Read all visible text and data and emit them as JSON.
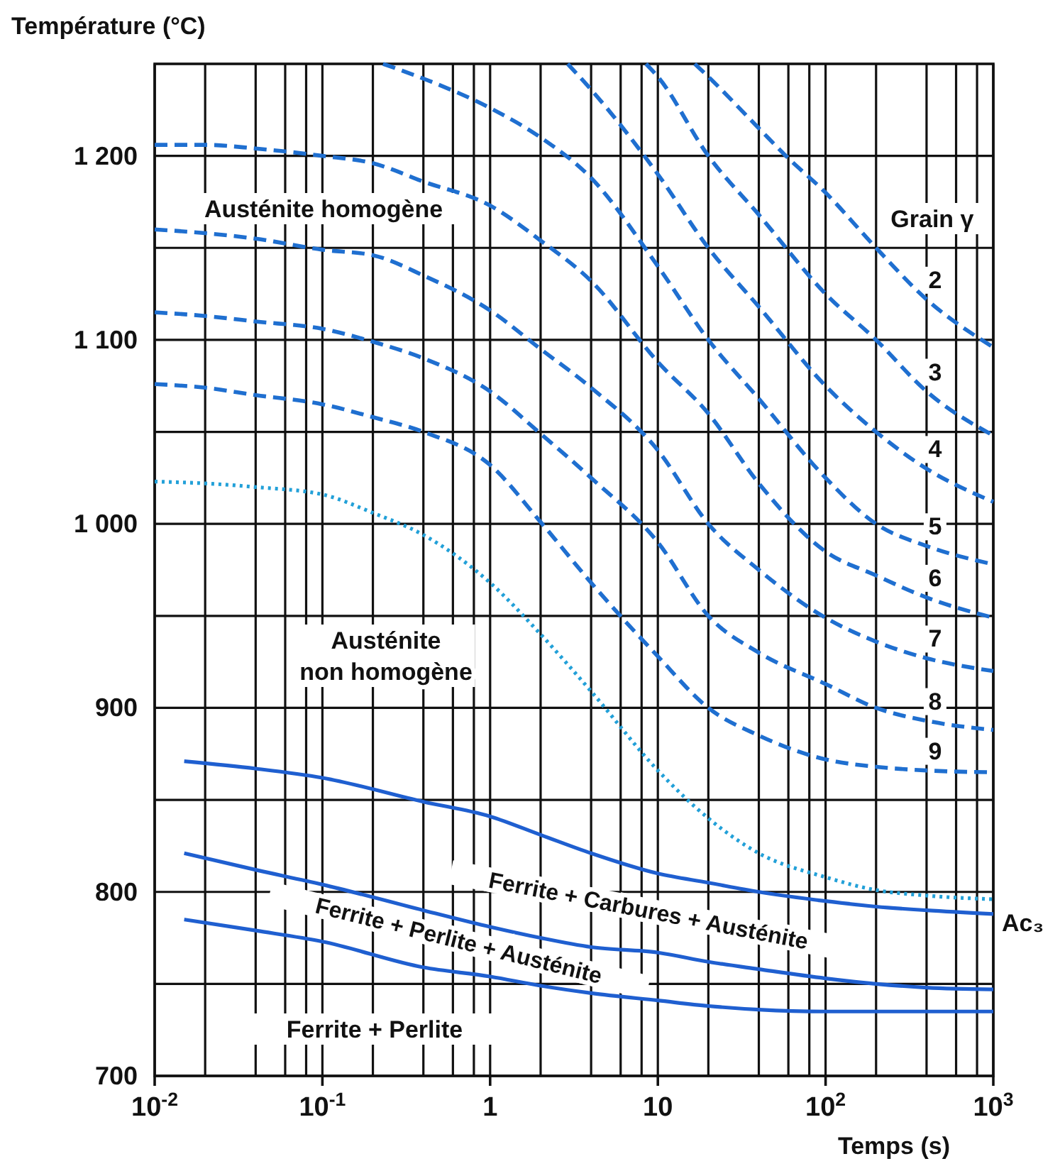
{
  "chart_data": {
    "type": "line",
    "ylabel": "Température (°C)",
    "xlabel": "Temps (s)",
    "legend_title": "Grain γ",
    "log": "x",
    "grid": true,
    "xlim": [
      0.01,
      1000
    ],
    "ylim": [
      700,
      1250
    ],
    "xticks": [
      {
        "value": 0.01,
        "label": "10$^{-2}$"
      },
      {
        "value": 0.02,
        "label": null
      },
      {
        "value": 0.04,
        "label": null
      },
      {
        "value": 0.06,
        "label": null
      },
      {
        "value": 0.08,
        "label": null
      },
      {
        "value": 0.1,
        "label": "10$^{-1}$"
      },
      {
        "value": 0.2,
        "label": null
      },
      {
        "value": 0.4,
        "label": null
      },
      {
        "value": 0.6,
        "label": null
      },
      {
        "value": 0.8,
        "label": null
      },
      1,
      {
        "value": 2,
        "label": null
      },
      {
        "value": 4,
        "label": null
      },
      {
        "value": 6,
        "label": null
      },
      {
        "value": 8,
        "label": null
      },
      10,
      {
        "value": 20,
        "label": null
      },
      {
        "value": 40,
        "label": null
      },
      {
        "value": 60,
        "label": null
      },
      {
        "value": 80,
        "label": null
      },
      {
        "value": 100,
        "label": "10$^{2}$"
      },
      {
        "value": 200,
        "label": null
      },
      {
        "value": 400,
        "label": null
      },
      {
        "value": 600,
        "label": null
      },
      {
        "value": 800,
        "label": null
      },
      {
        "value": 1000,
        "label": "10$^{3}$"
      }
    ],
    "yticks": [
      700,
      {
        "value": 750,
        "label": null
      },
      800,
      {
        "value": 850,
        "label": null
      },
      900,
      {
        "value": 950,
        "label": null
      },
      {
        "value": 1000,
        "label": "1 000"
      },
      {
        "value": 1050,
        "label": null
      },
      {
        "value": 1100,
        "label": "1 100"
      },
      {
        "value": 1150,
        "label": null
      },
      {
        "value": 1200,
        "label": "1 200"
      }
    ],
    "series": [
      {
        "name": "2",
        "color": "#1f6fd0",
        "line_style": "dashed",
        "x": [
          16.6,
          20,
          40,
          58,
          100,
          200,
          400,
          1000
        ],
        "values": [
          1250,
          1243,
          1215,
          1200,
          1180,
          1150,
          1122,
          1096
        ]
      },
      {
        "name": "3",
        "color": "#1f6fd0",
        "line_style": "dashed",
        "x": [
          8.5,
          10,
          20,
          40,
          100,
          200,
          400,
          1000
        ],
        "values": [
          1250,
          1243,
          1200,
          1168,
          1125,
          1100,
          1072,
          1048
        ]
      },
      {
        "name": "4",
        "color": "#1f6fd0",
        "line_style": "dashed",
        "x": [
          2.9,
          4,
          10,
          20,
          40,
          100,
          200,
          400,
          1000
        ],
        "values": [
          1250,
          1236,
          1190,
          1150,
          1118,
          1075,
          1050,
          1030,
          1012
        ]
      },
      {
        "name": "5",
        "color": "#1f6fd0",
        "line_style": "dashed",
        "x": [
          0.23,
          0.4,
          1,
          2,
          4,
          10,
          20,
          40,
          100,
          200,
          400,
          1000
        ],
        "values": [
          1250,
          1242,
          1226,
          1210,
          1188,
          1140,
          1100,
          1068,
          1025,
          1000,
          988,
          978
        ]
      },
      {
        "name": "6",
        "color": "#1f6fd0",
        "line_style": "dashed",
        "x": [
          0.01,
          0.02,
          0.04,
          0.1,
          0.2,
          0.4,
          1,
          2,
          4,
          10,
          20,
          40,
          100,
          200,
          400,
          1000
        ],
        "values": [
          1206,
          1206,
          1204,
          1200,
          1196,
          1186,
          1173,
          1154,
          1132,
          1088,
          1060,
          1022,
          985,
          972,
          960,
          949
        ]
      },
      {
        "name": "7",
        "color": "#1f6fd0",
        "line_style": "dashed",
        "x": [
          0.01,
          0.02,
          0.04,
          0.1,
          0.2,
          0.4,
          1,
          2,
          4,
          10,
          20,
          40,
          100,
          200,
          400,
          1000
        ],
        "values": [
          1160,
          1158,
          1155,
          1149,
          1146,
          1135,
          1116,
          1095,
          1074,
          1040,
          1000,
          975,
          949,
          936,
          927,
          920
        ]
      },
      {
        "name": "8",
        "color": "#1f6fd0",
        "line_style": "dashed",
        "x": [
          0.01,
          0.02,
          0.04,
          0.1,
          0.2,
          0.4,
          1,
          2,
          4,
          10,
          20,
          40,
          100,
          200,
          400,
          1000
        ],
        "values": [
          1115,
          1113,
          1110,
          1106,
          1099,
          1090,
          1072,
          1049,
          1025,
          990,
          950,
          930,
          913,
          900,
          893,
          888
        ]
      },
      {
        "name": "9",
        "color": "#1f6fd0",
        "line_style": "dashed",
        "x": [
          0.01,
          0.02,
          0.04,
          0.1,
          0.2,
          0.4,
          1,
          2,
          4,
          10,
          20,
          40,
          100,
          200,
          400,
          1000
        ],
        "values": [
          1076,
          1074,
          1070,
          1065,
          1058,
          1050,
          1032,
          1001,
          968,
          928,
          900,
          885,
          872,
          868,
          866,
          865
        ]
      },
      {
        "color": "#22a0d8",
        "line_style": "dotted",
        "x": [
          0.01,
          0.02,
          0.04,
          0.1,
          0.2,
          0.4,
          1,
          2,
          4,
          10,
          20,
          40,
          100,
          200,
          400,
          1000
        ],
        "values": [
          1023,
          1022,
          1020,
          1016,
          1006,
          994,
          968,
          940,
          909,
          866,
          840,
          821,
          808,
          801,
          798,
          796
        ]
      },
      {
        "name": "Ac₃",
        "color": "#1f5fd0",
        "line_style": "solid",
        "x": [
          0.015,
          0.04,
          0.1,
          0.4,
          1,
          2,
          4,
          10,
          20,
          40,
          100,
          200,
          400,
          1000
        ],
        "values": [
          871,
          867,
          862,
          849,
          841,
          831,
          821,
          810,
          805,
          800,
          795,
          792,
          790,
          788
        ]
      },
      {
        "color": "#1f5fd0",
        "line_style": "solid",
        "x": [
          0.015,
          0.04,
          0.1,
          0.4,
          1,
          2,
          4,
          10,
          20,
          40,
          100,
          200,
          400,
          1000
        ],
        "values": [
          821,
          812,
          804,
          790,
          781,
          775,
          770,
          767,
          762,
          758,
          753,
          750,
          748,
          747
        ]
      },
      {
        "color": "#1f5fd0",
        "line_style": "solid",
        "x": [
          0.015,
          0.04,
          0.1,
          0.4,
          1,
          2,
          4,
          10,
          20,
          40,
          100,
          200,
          400,
          1000
        ],
        "values": [
          785,
          779,
          773,
          759,
          754,
          749,
          745,
          741,
          738,
          736,
          735,
          735,
          735,
          735
        ]
      }
    ],
    "annotations": [
      "Austénite homogène",
      "Austénite non homogène",
      "Ferrite + Carbures + Austénite",
      "Ferrite + Perlite + Austénite",
      "Ferrite + Perlite"
    ]
  }
}
